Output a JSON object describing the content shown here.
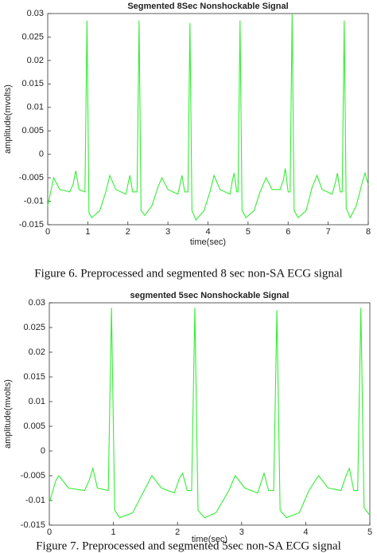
{
  "chart_data": [
    {
      "type": "line",
      "title": "Segmented 8Sec Nonshockable Signal",
      "x_label": "time(sec)",
      "y_label": "amplitude(mvolts)",
      "xlim": [
        0,
        8
      ],
      "xticks": [
        0,
        1,
        2,
        3,
        4,
        5,
        6,
        7,
        8
      ],
      "ylim": [
        -0.015,
        0.03
      ],
      "yticks": [
        -0.015,
        -0.01,
        -0.005,
        0,
        0.005,
        0.01,
        0.015,
        0.02,
        0.025,
        0.03
      ],
      "series": [
        {
          "color": "#33ee33",
          "x": [
            0,
            0.15,
            0.3,
            0.55,
            0.63,
            0.7,
            0.78,
            0.93,
            0.98,
            1.03,
            1.1,
            1.3,
            1.45,
            1.55,
            1.7,
            1.95,
            2.0,
            2.05,
            2.12,
            2.23,
            2.28,
            2.33,
            2.42,
            2.6,
            2.75,
            2.85,
            3.0,
            3.25,
            3.3,
            3.35,
            3.42,
            3.5,
            3.55,
            3.6,
            3.7,
            3.9,
            4.05,
            4.15,
            4.3,
            4.55,
            4.6,
            4.65,
            4.72,
            4.75,
            4.8,
            4.85,
            4.95,
            5.15,
            5.3,
            5.45,
            5.6,
            5.8,
            5.88,
            5.93,
            6.0,
            6.05,
            6.1,
            6.15,
            6.25,
            6.45,
            6.6,
            6.72,
            6.85,
            7.1,
            7.18,
            7.23,
            7.3,
            7.35,
            7.4,
            7.45,
            7.55,
            7.7,
            7.85,
            7.92,
            8
          ],
          "values": [
            -0.011,
            -0.005,
            -0.0075,
            -0.008,
            -0.0065,
            -0.0035,
            -0.0075,
            -0.008,
            0.0285,
            -0.0125,
            -0.0135,
            -0.012,
            -0.008,
            -0.0045,
            -0.0075,
            -0.0085,
            -0.0065,
            -0.0045,
            -0.008,
            -0.008,
            0.0285,
            -0.012,
            -0.013,
            -0.011,
            -0.007,
            -0.005,
            -0.0075,
            -0.0085,
            -0.0065,
            -0.0045,
            -0.008,
            -0.008,
            0.028,
            -0.012,
            -0.014,
            -0.012,
            -0.008,
            -0.0045,
            -0.0075,
            -0.0085,
            -0.006,
            -0.004,
            -0.008,
            -0.008,
            0.0285,
            -0.012,
            -0.0135,
            -0.012,
            -0.008,
            -0.005,
            -0.0075,
            -0.0075,
            -0.0055,
            -0.003,
            -0.008,
            -0.008,
            0.03,
            -0.012,
            -0.0135,
            -0.012,
            -0.007,
            -0.0045,
            -0.0075,
            -0.0085,
            -0.006,
            -0.004,
            -0.008,
            -0.008,
            0.0285,
            -0.0115,
            -0.0135,
            -0.011,
            -0.006,
            -0.004,
            -0.0065
          ]
        }
      ]
    },
    {
      "type": "line",
      "title": "segmented 5sec Nonshockable Signal",
      "x_label": "time(sec)",
      "y_label": "amplitude(mvolts)",
      "xlim": [
        0,
        5
      ],
      "xticks": [
        0,
        1,
        2,
        3,
        4,
        5
      ],
      "ylim": [
        -0.015,
        0.03
      ],
      "yticks": [
        -0.015,
        -0.01,
        -0.005,
        0,
        0.005,
        0.01,
        0.015,
        0.02,
        0.025,
        0.03
      ],
      "series": [
        {
          "color": "#33ee33",
          "x": [
            0,
            0.1,
            0.15,
            0.3,
            0.55,
            0.62,
            0.68,
            0.75,
            0.92,
            0.97,
            1.02,
            1.1,
            1.3,
            1.5,
            1.6,
            1.75,
            1.95,
            2.03,
            2.08,
            2.15,
            2.22,
            2.27,
            2.32,
            2.42,
            2.6,
            2.8,
            2.9,
            3.05,
            3.25,
            3.3,
            3.35,
            3.42,
            3.5,
            3.55,
            3.6,
            3.7,
            3.9,
            4.05,
            4.2,
            4.35,
            4.55,
            4.63,
            4.68,
            4.75,
            4.81,
            4.86,
            4.91,
            5
          ],
          "values": [
            -0.0105,
            -0.006,
            -0.005,
            -0.0075,
            -0.008,
            -0.006,
            -0.0035,
            -0.0075,
            -0.008,
            0.029,
            -0.012,
            -0.0135,
            -0.0125,
            -0.0075,
            -0.005,
            -0.0075,
            -0.0085,
            -0.0055,
            -0.0045,
            -0.008,
            -0.008,
            0.029,
            -0.012,
            -0.0135,
            -0.0125,
            -0.008,
            -0.005,
            -0.0075,
            -0.0085,
            -0.0065,
            -0.0045,
            -0.008,
            -0.008,
            0.0285,
            -0.012,
            -0.0135,
            -0.0125,
            -0.008,
            -0.005,
            -0.0075,
            -0.008,
            -0.005,
            -0.0035,
            -0.008,
            -0.008,
            0.029,
            -0.0115,
            -0.013
          ]
        }
      ]
    }
  ],
  "captions": [
    "Figure 6. Preprocessed and segmented 8 sec non-SA ECG signal",
    "Figure 7. Preprocessed and segmented 5sec non-SA ECG signal"
  ]
}
